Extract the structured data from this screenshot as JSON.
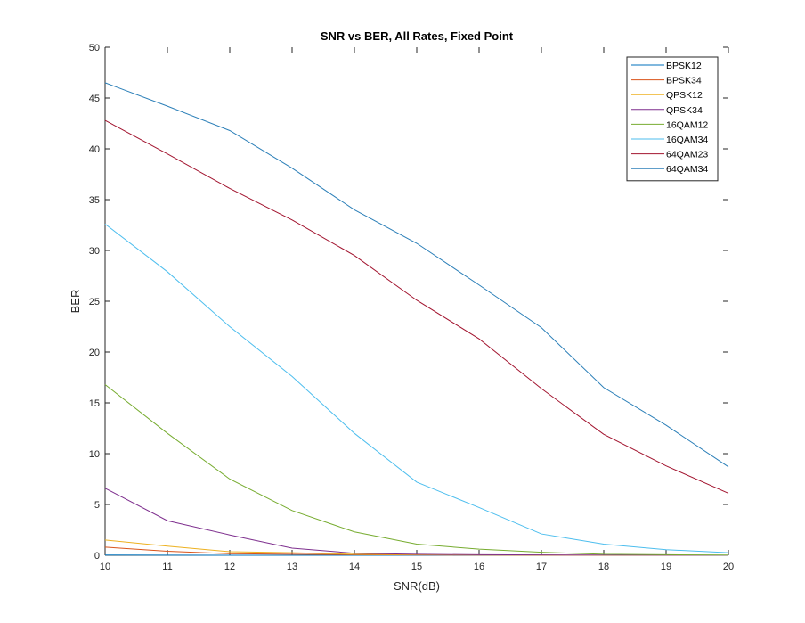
{
  "chart_data": {
    "type": "line",
    "title": "SNR vs BER, All Rates, Fixed Point",
    "xlabel": "SNR(dB)",
    "ylabel": "BER",
    "xlim": [
      10,
      20
    ],
    "ylim": [
      0,
      50
    ],
    "xticks": [
      "10",
      "11",
      "12",
      "13",
      "14",
      "15",
      "16",
      "17",
      "18",
      "19",
      "20"
    ],
    "yticks": [
      "0",
      "5",
      "10",
      "15",
      "20",
      "25",
      "30",
      "35",
      "40",
      "45",
      "50"
    ],
    "grid": false,
    "legend_position": "top-right",
    "x": [
      10,
      11,
      12,
      13,
      14,
      15,
      16,
      17,
      18,
      19,
      20
    ],
    "series": [
      {
        "name": "BPSK12",
        "color": "#0072BD",
        "values": [
          0.02,
          0.01,
          0,
          0,
          0,
          0,
          0,
          0,
          0,
          0,
          0
        ]
      },
      {
        "name": "BPSK34",
        "color": "#D95319",
        "values": [
          0.8,
          0.4,
          0.15,
          0.1,
          0.05,
          0.03,
          0.02,
          0.01,
          0,
          0,
          0
        ]
      },
      {
        "name": "QPSK12",
        "color": "#EDB120",
        "values": [
          1.5,
          0.9,
          0.35,
          0.25,
          0.1,
          0.05,
          0.03,
          0.02,
          0.01,
          0,
          0
        ]
      },
      {
        "name": "QPSK34",
        "color": "#7E2F8E",
        "values": [
          6.6,
          3.4,
          2.0,
          0.7,
          0.2,
          0.1,
          0.05,
          0.03,
          0.02,
          0.01,
          0
        ]
      },
      {
        "name": "16QAM12",
        "color": "#77AC30",
        "values": [
          16.8,
          12.0,
          7.5,
          4.4,
          2.3,
          1.1,
          0.6,
          0.3,
          0.1,
          0.05,
          0.02
        ]
      },
      {
        "name": "16QAM34",
        "color": "#4DBEEE",
        "values": [
          32.6,
          27.9,
          22.5,
          17.6,
          12.0,
          7.2,
          4.7,
          2.1,
          1.1,
          0.55,
          0.25
        ]
      },
      {
        "name": "64QAM23",
        "color": "#A2142F",
        "values": [
          42.8,
          39.5,
          36.1,
          33.0,
          29.5,
          25.1,
          21.3,
          16.4,
          11.9,
          8.8,
          6.1
        ]
      },
      {
        "name": "64QAM34",
        "color": "#2B7FB8",
        "values": [
          46.5,
          44.2,
          41.8,
          38.1,
          34.0,
          30.7,
          26.6,
          22.4,
          16.5,
          12.8,
          8.7
        ]
      }
    ]
  }
}
